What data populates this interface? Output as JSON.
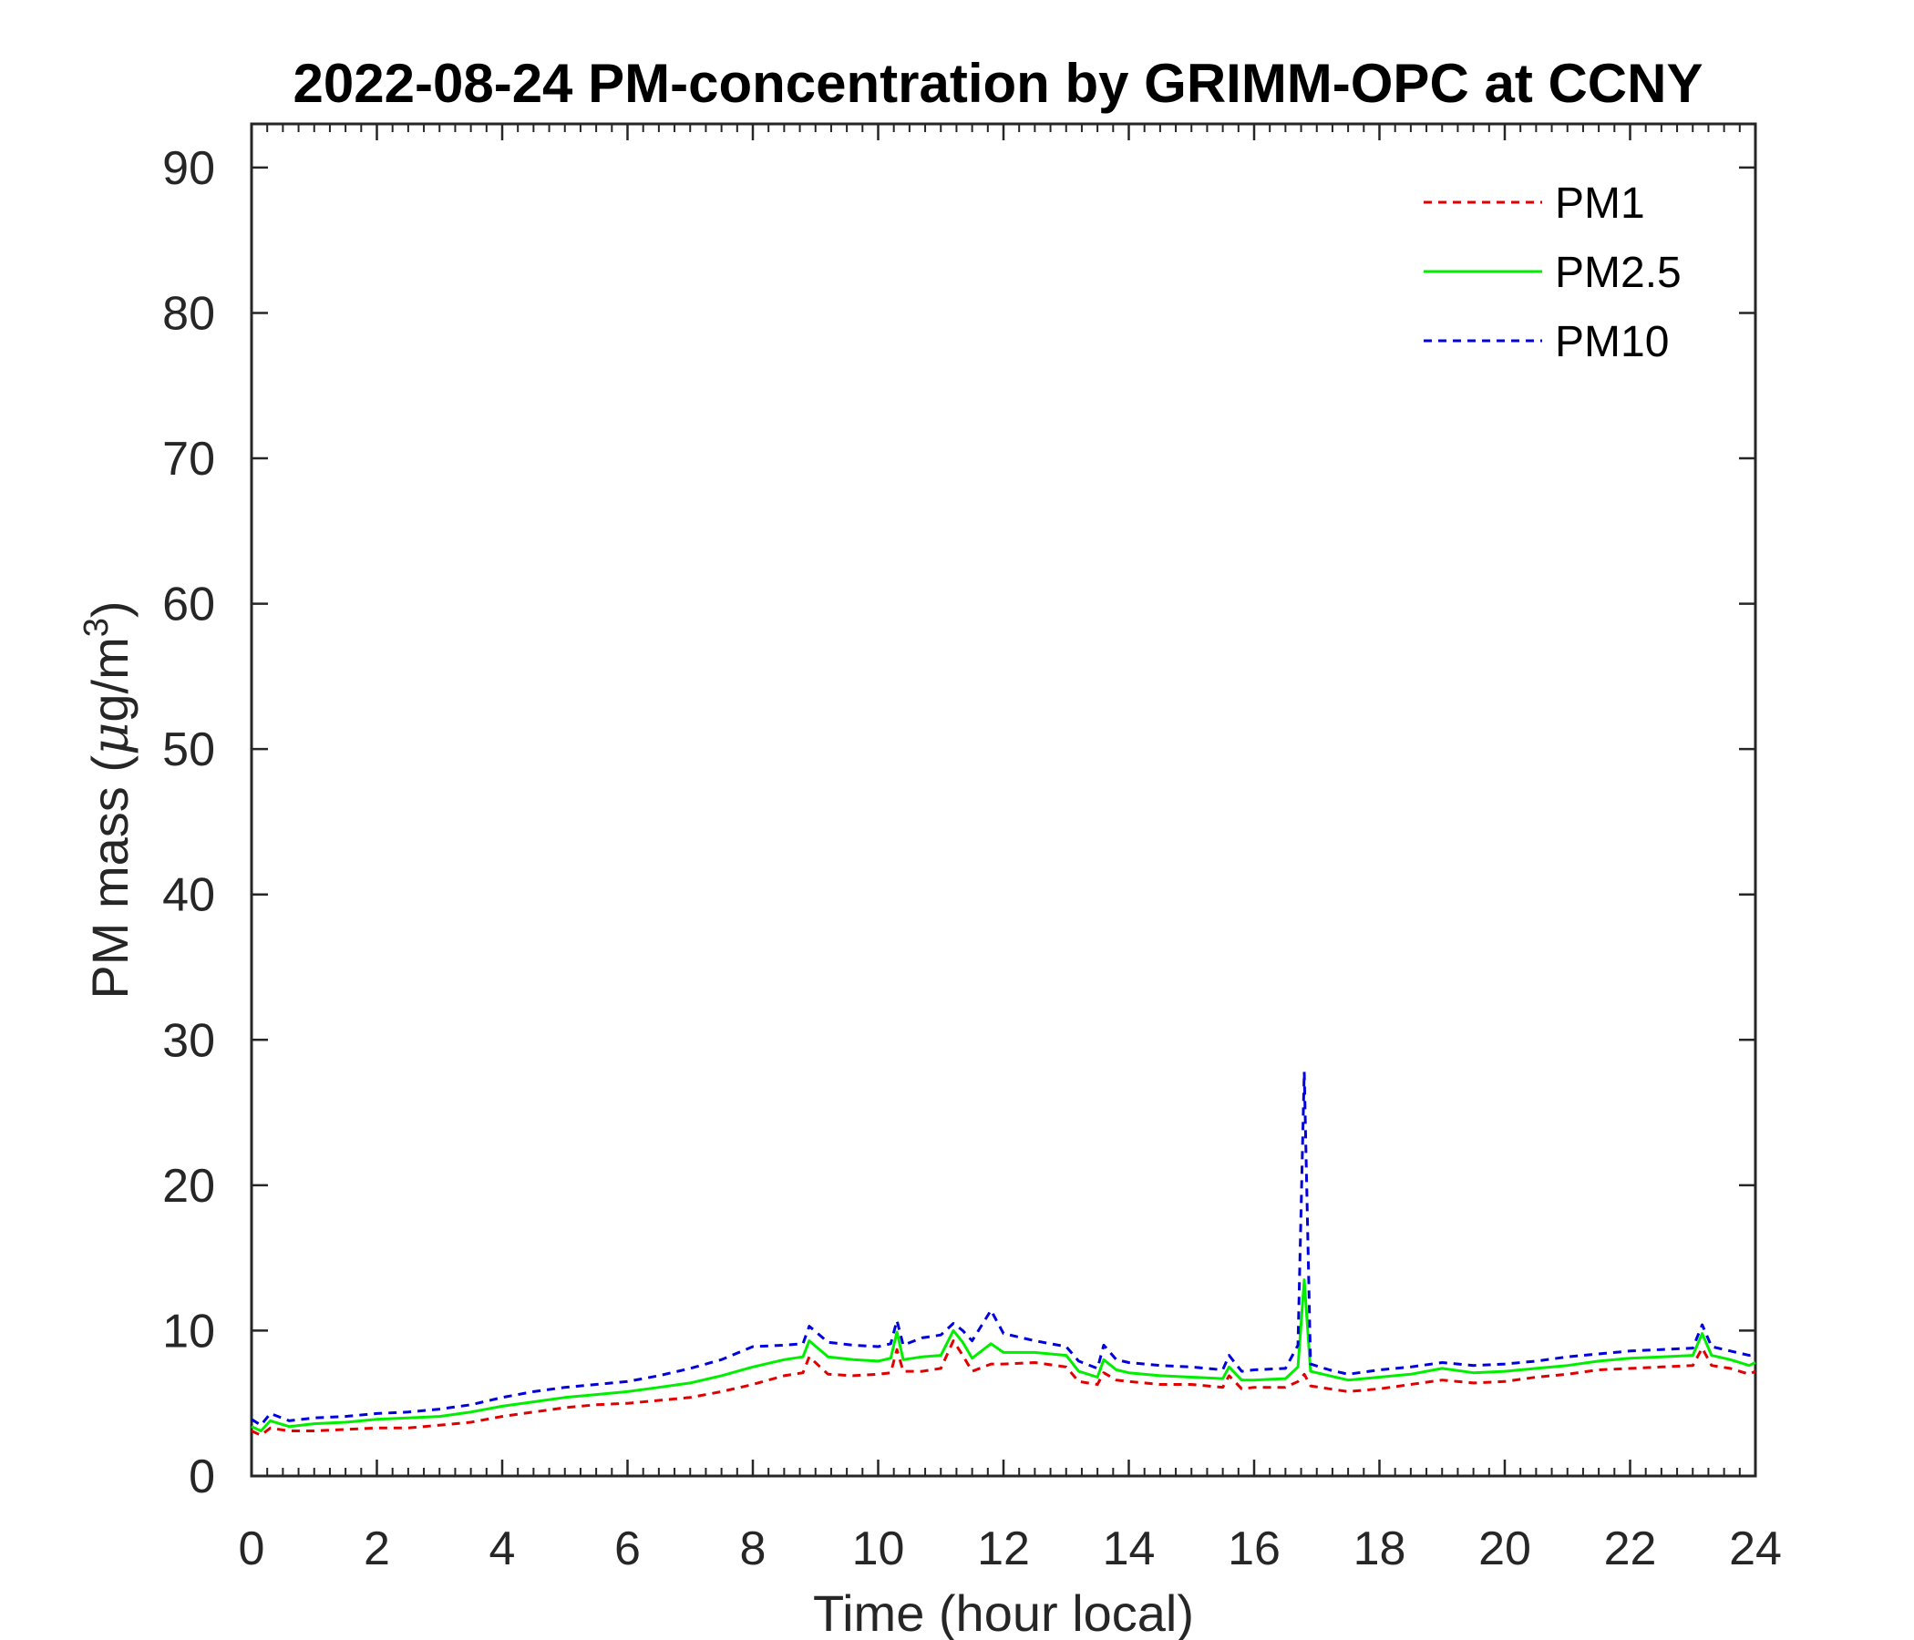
{
  "chart_data": {
    "type": "line",
    "title": "2022-08-24 PM-concentration by GRIMM-OPC at CCNY",
    "xlabel": "Time (hour local)",
    "ylabel": "PM mass (μg/m³)",
    "ylabel_parts": {
      "prefix": "PM mass (",
      "mu": "μ",
      "unit": "g/m",
      "sup": "3",
      "suffix": ")"
    },
    "xlim": [
      0,
      24
    ],
    "ylim": [
      0,
      93
    ],
    "xticks": [
      0,
      2,
      4,
      6,
      8,
      10,
      12,
      14,
      16,
      18,
      20,
      22,
      24
    ],
    "yticks": [
      0,
      10,
      20,
      30,
      40,
      50,
      60,
      70,
      80,
      90
    ],
    "xtick_labels": [
      "0",
      "2",
      "4",
      "6",
      "8",
      "10",
      "12",
      "14",
      "16",
      "18",
      "20",
      "22",
      "24"
    ],
    "ytick_labels": [
      "0",
      "10",
      "20",
      "30",
      "40",
      "50",
      "60",
      "70",
      "80",
      "90"
    ],
    "grid": false,
    "legend_position": "top-right",
    "series": [
      {
        "name": "PM1",
        "color": "#e00000",
        "dash": "dashed",
        "x": [
          0,
          0.15,
          0.3,
          0.6,
          1,
          1.5,
          2,
          2.5,
          3,
          3.5,
          4,
          4.5,
          5,
          5.5,
          6,
          6.5,
          7,
          7.5,
          8,
          8.5,
          8.8,
          8.9,
          9.2,
          9.6,
          10,
          10.2,
          10.3,
          10.4,
          10.7,
          11,
          11.2,
          11.35,
          11.5,
          11.8,
          12,
          12.5,
          13,
          13.2,
          13.5,
          13.6,
          13.8,
          14,
          14.5,
          15,
          15.5,
          15.6,
          15.8,
          16,
          16.5,
          16.7,
          16.8,
          16.9,
          17.2,
          17.5,
          18,
          18.5,
          19,
          19.5,
          20,
          20.5,
          21,
          21.5,
          22,
          22.5,
          23,
          23.15,
          23.3,
          23.6,
          23.9,
          24
        ],
        "y": [
          3.1,
          2.8,
          3.3,
          3.1,
          3.1,
          3.2,
          3.3,
          3.3,
          3.5,
          3.7,
          4.1,
          4.4,
          4.7,
          4.9,
          5.0,
          5.2,
          5.4,
          5.8,
          6.3,
          6.9,
          7.1,
          8.2,
          7.0,
          6.9,
          7.0,
          7.1,
          8.7,
          7.2,
          7.2,
          7.4,
          9.3,
          8.3,
          7.2,
          7.7,
          7.7,
          7.8,
          7.5,
          6.5,
          6.3,
          7.1,
          6.6,
          6.5,
          6.3,
          6.3,
          6.1,
          6.9,
          6.0,
          6.1,
          6.1,
          6.5,
          7.0,
          6.2,
          6.0,
          5.8,
          6.0,
          6.3,
          6.6,
          6.4,
          6.5,
          6.8,
          7.0,
          7.3,
          7.4,
          7.5,
          7.6,
          8.8,
          7.6,
          7.4,
          7.0,
          7.2
        ]
      },
      {
        "name": "PM2.5",
        "color": "#00ee00",
        "dash": "solid",
        "x": [
          0,
          0.15,
          0.3,
          0.6,
          1,
          1.5,
          2,
          2.5,
          3,
          3.5,
          4,
          4.5,
          5,
          5.5,
          6,
          6.5,
          7,
          7.5,
          8,
          8.5,
          8.8,
          8.9,
          9.2,
          9.6,
          10,
          10.2,
          10.3,
          10.4,
          10.7,
          11,
          11.2,
          11.35,
          11.5,
          11.8,
          12,
          12.5,
          13,
          13.2,
          13.5,
          13.6,
          13.8,
          14,
          14.5,
          15,
          15.5,
          15.6,
          15.8,
          16,
          16.5,
          16.7,
          16.8,
          16.9,
          17.2,
          17.5,
          18,
          18.5,
          19,
          19.5,
          20,
          20.5,
          21,
          21.5,
          22,
          22.5,
          23,
          23.15,
          23.3,
          23.6,
          23.9,
          24
        ],
        "y": [
          3.4,
          3.1,
          3.8,
          3.4,
          3.6,
          3.7,
          3.9,
          4.0,
          4.1,
          4.4,
          4.8,
          5.1,
          5.4,
          5.6,
          5.8,
          6.1,
          6.4,
          6.9,
          7.5,
          8.0,
          8.2,
          9.3,
          8.2,
          8.0,
          7.9,
          8.1,
          9.9,
          8.0,
          8.2,
          8.3,
          10.0,
          9.2,
          8.1,
          9.1,
          8.5,
          8.5,
          8.3,
          7.2,
          6.8,
          8.0,
          7.3,
          7.1,
          6.9,
          6.8,
          6.7,
          7.5,
          6.6,
          6.6,
          6.7,
          7.5,
          13.5,
          7.2,
          6.9,
          6.6,
          6.8,
          7.0,
          7.4,
          7.1,
          7.2,
          7.4,
          7.6,
          7.9,
          8.1,
          8.2,
          8.3,
          9.8,
          8.3,
          8.0,
          7.6,
          7.8
        ]
      },
      {
        "name": "PM10",
        "color": "#0000dd",
        "dash": "dashed",
        "x": [
          0,
          0.15,
          0.3,
          0.6,
          1,
          1.5,
          2,
          2.5,
          3,
          3.5,
          4,
          4.5,
          5,
          5.5,
          6,
          6.5,
          7,
          7.5,
          8,
          8.5,
          8.8,
          8.9,
          9.2,
          9.6,
          10,
          10.2,
          10.3,
          10.4,
          10.7,
          11,
          11.2,
          11.35,
          11.5,
          11.8,
          12,
          12.5,
          13,
          13.2,
          13.5,
          13.6,
          13.8,
          14,
          14.5,
          15,
          15.5,
          15.6,
          15.8,
          16,
          16.5,
          16.7,
          16.8,
          16.9,
          17.2,
          17.5,
          18,
          18.5,
          19,
          19.5,
          20,
          20.5,
          21,
          21.5,
          22,
          22.5,
          23,
          23.15,
          23.3,
          23.6,
          23.9,
          24
        ],
        "y": [
          3.9,
          3.5,
          4.3,
          3.8,
          4.0,
          4.1,
          4.3,
          4.4,
          4.6,
          4.9,
          5.4,
          5.8,
          6.1,
          6.3,
          6.5,
          6.9,
          7.4,
          8.0,
          8.9,
          9.0,
          9.1,
          10.3,
          9.2,
          9.0,
          8.9,
          9.1,
          10.7,
          9.0,
          9.5,
          9.7,
          10.5,
          10.0,
          9.3,
          11.4,
          9.8,
          9.3,
          8.9,
          7.9,
          7.4,
          9.0,
          8.0,
          7.8,
          7.6,
          7.5,
          7.3,
          8.3,
          7.2,
          7.3,
          7.4,
          9.0,
          27.8,
          7.7,
          7.3,
          7.0,
          7.3,
          7.5,
          7.8,
          7.6,
          7.7,
          7.9,
          8.2,
          8.4,
          8.6,
          8.7,
          8.8,
          10.4,
          8.9,
          8.6,
          8.3,
          8.4
        ]
      }
    ]
  }
}
